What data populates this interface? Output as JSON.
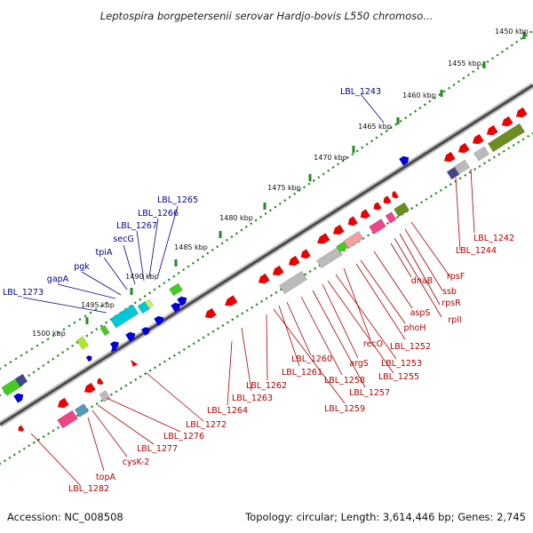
{
  "title": "Leptospira borgpetersenii serovar Hardjo-bovis L550 chromoso...",
  "footer": {
    "accession": "Accession: NC_008508",
    "summary": "Topology: circular; Length: 3,614,446 bp; Genes: 2,745"
  },
  "scale_labels": [
    "1450 kbp",
    "1455 kbp",
    "1460 kbp",
    "1465 kbp",
    "1470 kbp",
    "1475 kbp",
    "1480 kbp",
    "1485 kbp",
    "1490 kbp",
    "1495 kbp",
    "1500 kbp"
  ],
  "forward_labels": [
    "LBL_1243",
    "LBL_1265",
    "LBL_1266",
    "LBL_1267",
    "secG",
    "tpiA",
    "pgk",
    "gapA",
    "LBL_1273"
  ],
  "reverse_labels": [
    "LBL_1242",
    "LBL_1244",
    "rpsF",
    "ssb",
    "rpsR",
    "rplI",
    "dnaB",
    "aspS",
    "phoH",
    "LBL_1252",
    "recO",
    "LBL_1253",
    "LBL_1255",
    "argS",
    "LBL_1257",
    "LBL_1258",
    "LBL_1260",
    "LBL_1261",
    "LBL_1259",
    "LBL_1262",
    "LBL_1263",
    "LBL_1264",
    "LBL_1272",
    "LBL_1276",
    "LBL_1277",
    "cysK-2",
    "topA",
    "LBL_1282"
  ],
  "colors": {
    "forward_gene": "#0000dd",
    "reverse_gene": "#ee0000",
    "forward_label": "#00008b",
    "reverse_label": "#b00000",
    "scale_ticks": "#228b22",
    "backbone": "#555555",
    "cds_cyan": "#00c8d8",
    "cds_green": "#44cc22",
    "cds_olive": "#6b8e23",
    "cds_gray": "#bbbbbb",
    "cds_pink": "#ee4488",
    "cds_navy": "#444488"
  }
}
